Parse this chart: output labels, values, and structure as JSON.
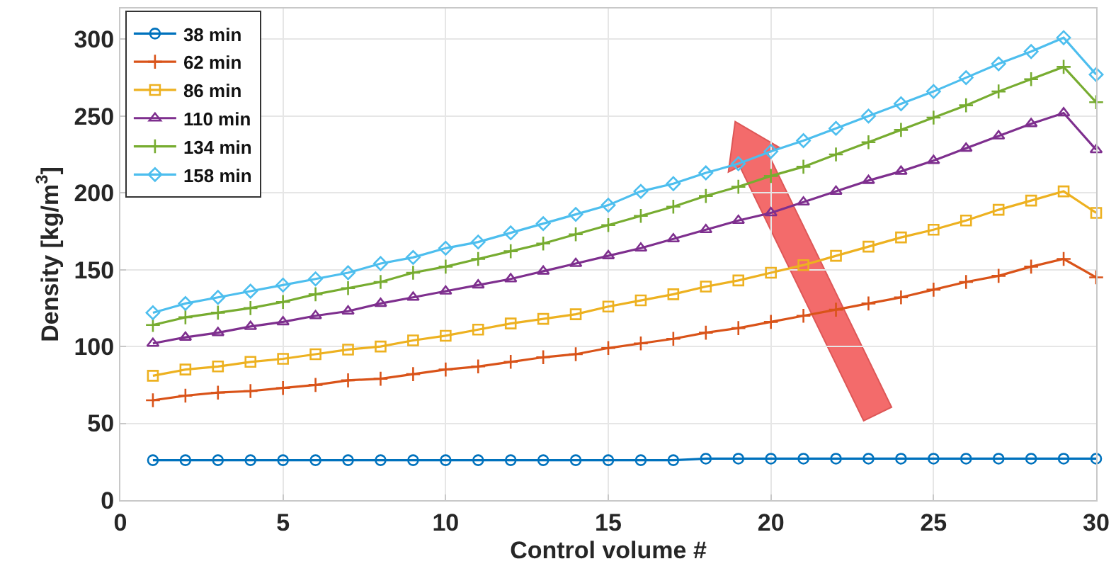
{
  "chart_data": {
    "type": "line",
    "xlabel": "Control volume #",
    "ylabel": "Density [kg/m$^{3}$]",
    "x": [
      1,
      2,
      3,
      4,
      5,
      6,
      7,
      8,
      9,
      10,
      11,
      12,
      13,
      14,
      15,
      16,
      17,
      18,
      19,
      20,
      21,
      22,
      23,
      24,
      25,
      26,
      27,
      28,
      29,
      30
    ],
    "xlim": [
      0,
      30
    ],
    "xticks": [
      0,
      5,
      10,
      15,
      20,
      25,
      30
    ],
    "ylim": [
      0,
      320
    ],
    "yticks": [
      0,
      50,
      100,
      150,
      200,
      250,
      300
    ],
    "grid": true,
    "legend": "top left",
    "line_style": "solid",
    "series": [
      {
        "name": "38 min",
        "color": "#0072bd",
        "marker": "circle",
        "values": [
          26,
          26,
          26,
          26,
          26,
          26,
          26,
          26,
          26,
          26,
          26,
          26,
          26,
          26,
          26,
          26,
          26,
          27,
          27,
          27,
          27,
          27,
          27,
          27,
          27,
          27,
          27,
          27,
          27,
          27
        ]
      },
      {
        "name": "62 min",
        "color": "#d95319",
        "marker": "cross",
        "values": [
          65,
          68,
          70,
          71,
          73,
          75,
          78,
          79,
          82,
          85,
          87,
          90,
          93,
          95,
          99,
          102,
          105,
          109,
          112,
          116,
          120,
          124,
          128,
          132,
          137,
          142,
          146,
          152,
          157,
          145
        ]
      },
      {
        "name": "86 min",
        "color": "#edb120",
        "marker": "square",
        "values": [
          81,
          85,
          87,
          90,
          92,
          95,
          98,
          100,
          104,
          107,
          111,
          115,
          118,
          121,
          126,
          130,
          134,
          139,
          143,
          148,
          153,
          159,
          165,
          171,
          176,
          182,
          189,
          195,
          201,
          187
        ]
      },
      {
        "name": "110 min",
        "color": "#7e2f8e",
        "marker": "triangle",
        "values": [
          102,
          106,
          109,
          113,
          116,
          120,
          123,
          128,
          132,
          136,
          140,
          144,
          149,
          154,
          159,
          164,
          170,
          176,
          182,
          187,
          194,
          201,
          208,
          214,
          221,
          229,
          237,
          245,
          252,
          228
        ]
      },
      {
        "name": "134 min",
        "color": "#77ac30",
        "marker": "cross",
        "values": [
          114,
          119,
          122,
          125,
          129,
          134,
          138,
          142,
          148,
          152,
          157,
          162,
          167,
          173,
          179,
          185,
          191,
          198,
          204,
          211,
          217,
          225,
          233,
          241,
          249,
          257,
          266,
          274,
          282,
          259
        ]
      },
      {
        "name": "158 min",
        "color": "#4dbeee",
        "marker": "diamond",
        "values": [
          122,
          128,
          132,
          136,
          140,
          144,
          148,
          154,
          158,
          164,
          168,
          174,
          180,
          186,
          192,
          201,
          206,
          213,
          219,
          227,
          234,
          242,
          250,
          258,
          266,
          275,
          284,
          292,
          301,
          277
        ]
      }
    ]
  }
}
